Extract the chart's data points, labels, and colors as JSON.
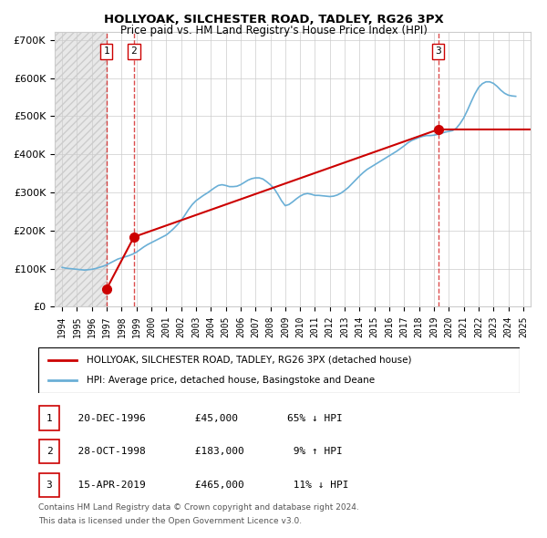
{
  "title": "HOLLYOAK, SILCHESTER ROAD, TADLEY, RG26 3PX",
  "subtitle": "Price paid vs. HM Land Registry's House Price Index (HPI)",
  "legend_entry1": "HOLLYOAK, SILCHESTER ROAD, TADLEY, RG26 3PX (detached house)",
  "legend_entry2": "HPI: Average price, detached house, Basingstoke and Deane",
  "footer1": "Contains HM Land Registry data © Crown copyright and database right 2024.",
  "footer2": "This data is licensed under the Open Government Licence v3.0.",
  "transactions": [
    {
      "num": 1,
      "date": "20-DEC-1996",
      "price": 45000,
      "hpi_pct": "65% ↓ HPI",
      "x_year": 1996.97
    },
    {
      "num": 2,
      "date": "28-OCT-1998",
      "price": 183000,
      "hpi_pct": "9% ↑ HPI",
      "x_year": 1998.83
    },
    {
      "num": 3,
      "date": "15-APR-2019",
      "price": 465000,
      "hpi_pct": "11% ↓ HPI",
      "x_year": 2019.29
    }
  ],
  "hpi_line_color": "#6aafd6",
  "price_line_color": "#cc0000",
  "marker_color": "#cc0000",
  "background_hatch_color": "#e8e8e8",
  "grid_color": "#cccccc",
  "ylim": [
    0,
    720000
  ],
  "xlim_left": 1993.5,
  "xlim_right": 2025.5,
  "hpi_data": {
    "years": [
      1994.0,
      1994.25,
      1994.5,
      1994.75,
      1995.0,
      1995.25,
      1995.5,
      1995.75,
      1996.0,
      1996.25,
      1996.5,
      1996.75,
      1997.0,
      1997.25,
      1997.5,
      1997.75,
      1998.0,
      1998.25,
      1998.5,
      1998.75,
      1999.0,
      1999.25,
      1999.5,
      1999.75,
      2000.0,
      2000.25,
      2000.5,
      2000.75,
      2001.0,
      2001.25,
      2001.5,
      2001.75,
      2002.0,
      2002.25,
      2002.5,
      2002.75,
      2003.0,
      2003.25,
      2003.5,
      2003.75,
      2004.0,
      2004.25,
      2004.5,
      2004.75,
      2005.0,
      2005.25,
      2005.5,
      2005.75,
      2006.0,
      2006.25,
      2006.5,
      2006.75,
      2007.0,
      2007.25,
      2007.5,
      2007.75,
      2008.0,
      2008.25,
      2008.5,
      2008.75,
      2009.0,
      2009.25,
      2009.5,
      2009.75,
      2010.0,
      2010.25,
      2010.5,
      2010.75,
      2011.0,
      2011.25,
      2011.5,
      2011.75,
      2012.0,
      2012.25,
      2012.5,
      2012.75,
      2013.0,
      2013.25,
      2013.5,
      2013.75,
      2014.0,
      2014.25,
      2014.5,
      2014.75,
      2015.0,
      2015.25,
      2015.5,
      2015.75,
      2016.0,
      2016.25,
      2016.5,
      2016.75,
      2017.0,
      2017.25,
      2017.5,
      2017.75,
      2018.0,
      2018.25,
      2018.5,
      2018.75,
      2019.0,
      2019.25,
      2019.5,
      2019.75,
      2020.0,
      2020.25,
      2020.5,
      2020.75,
      2021.0,
      2021.25,
      2021.5,
      2021.75,
      2022.0,
      2022.25,
      2022.5,
      2022.75,
      2023.0,
      2023.25,
      2023.5,
      2023.75,
      2024.0,
      2024.25,
      2024.5
    ],
    "values": [
      103000,
      101000,
      100000,
      99000,
      98000,
      97000,
      96000,
      97000,
      98000,
      100000,
      103000,
      106000,
      110000,
      115000,
      120000,
      125000,
      128000,
      131000,
      134000,
      138000,
      143000,
      150000,
      157000,
      163000,
      168000,
      173000,
      178000,
      183000,
      188000,
      196000,
      205000,
      215000,
      226000,
      240000,
      255000,
      268000,
      278000,
      285000,
      292000,
      298000,
      305000,
      312000,
      318000,
      320000,
      318000,
      315000,
      315000,
      316000,
      320000,
      326000,
      332000,
      336000,
      338000,
      338000,
      335000,
      328000,
      320000,
      310000,
      295000,
      278000,
      265000,
      268000,
      275000,
      283000,
      290000,
      295000,
      297000,
      295000,
      292000,
      292000,
      291000,
      290000,
      289000,
      290000,
      293000,
      298000,
      305000,
      313000,
      323000,
      333000,
      343000,
      352000,
      360000,
      366000,
      372000,
      378000,
      384000,
      390000,
      396000,
      402000,
      408000,
      415000,
      422000,
      430000,
      436000,
      440000,
      444000,
      447000,
      449000,
      449000,
      450000,
      452000,
      455000,
      458000,
      460000,
      462000,
      468000,
      480000,
      495000,
      515000,
      537000,
      558000,
      575000,
      585000,
      590000,
      590000,
      586000,
      578000,
      568000,
      560000,
      555000,
      553000,
      552000
    ]
  },
  "price_line_data": {
    "segments": [
      {
        "x": [
          1996.97,
          1998.83
        ],
        "y": [
          45000,
          183000
        ]
      },
      {
        "x": [
          1998.83,
          2019.29
        ],
        "y": [
          183000,
          465000
        ]
      },
      {
        "x": [
          2019.29,
          2024.5
        ],
        "y": [
          465000,
          465000
        ]
      }
    ]
  }
}
